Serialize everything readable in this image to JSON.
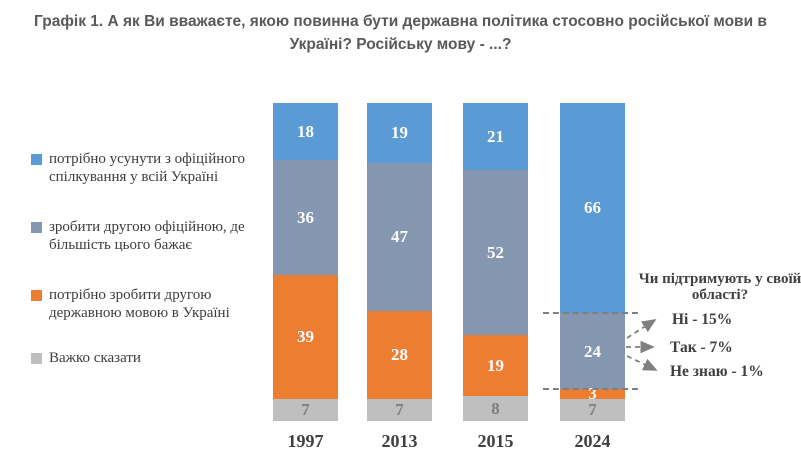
{
  "title": "Графік 1. А як Ви вважаєте, якою повинна бути державна політика стосовно російської мови в Україні? Російську мову - ...?",
  "colors": {
    "blue": "#5B9BD5",
    "gray": "#8496B0",
    "orange": "#ED7D31",
    "lightgray": "#BFBFBF",
    "value_label_light": "#FDFDFD",
    "value_label_dark": "#7F7F7F",
    "annotation_gray": "#808080"
  },
  "chart_data": {
    "type": "bar",
    "stacked": true,
    "unit": "%",
    "grid": false,
    "legend_position": "left",
    "categories": [
      "1997",
      "2013",
      "2015",
      "2024"
    ],
    "series": [
      {
        "name": "потрібно усунути з офіційного спілкування у всій Україні",
        "color_key": "blue",
        "values": [
          18,
          19,
          21,
          66
        ]
      },
      {
        "name": "зробити другою офіційною, де більшість цього бажає",
        "color_key": "gray",
        "values": [
          36,
          47,
          52,
          24
        ]
      },
      {
        "name": "потрібно зробити другою державною мовою в Україні",
        "color_key": "orange",
        "values": [
          39,
          28,
          19,
          3
        ]
      },
      {
        "name": "Важко сказати",
        "color_key": "lightgray",
        "values": [
          7,
          7,
          8,
          7
        ]
      }
    ],
    "annotation": {
      "header": "Чи підтримують у своїй області?",
      "items": [
        "Ні - 15%",
        "Так - 7%",
        "Не знаю - 1%"
      ]
    }
  }
}
